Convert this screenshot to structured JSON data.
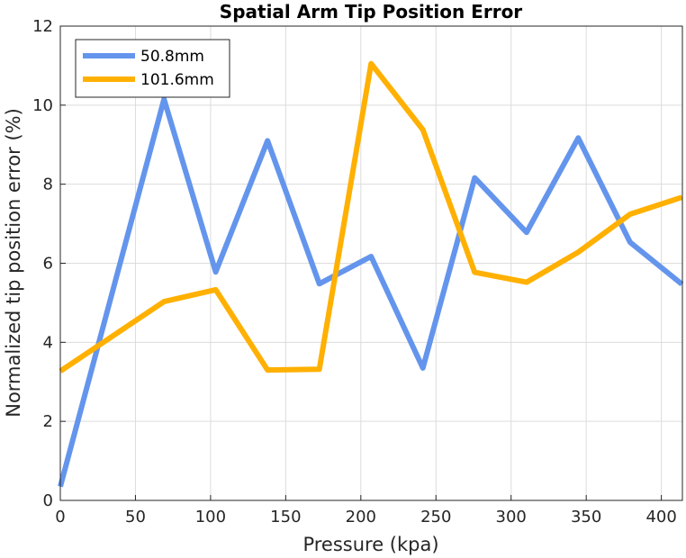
{
  "chart_data": {
    "type": "line",
    "title": "Spatial Arm Tip Position Error",
    "xlabel": "Pressure (kpa)",
    "ylabel": "Normalized tip position error (%)",
    "xlim": [
      0,
      414
    ],
    "ylim": [
      0,
      12
    ],
    "xticks": [
      0,
      50,
      100,
      150,
      200,
      250,
      300,
      350,
      400
    ],
    "yticks": [
      0,
      2,
      4,
      6,
      8,
      10,
      12
    ],
    "grid": true,
    "legend_position": "top-left",
    "series": [
      {
        "name": "50.8mm",
        "color": "#6495ED",
        "x": [
          0,
          69,
          103.4,
          137.9,
          172.4,
          206.8,
          241.3,
          275.8,
          310.3,
          344.7,
          379.2,
          413.7
        ],
        "y": [
          0.35,
          10.15,
          5.78,
          9.1,
          5.48,
          6.17,
          3.35,
          8.16,
          6.78,
          9.17,
          6.53,
          5.47
        ]
      },
      {
        "name": "101.6mm",
        "color": "#FFB000",
        "x": [
          0,
          69,
          103.4,
          137.9,
          172.4,
          206.8,
          241.3,
          275.8,
          310.3,
          344.7,
          379.2,
          413.7
        ],
        "y": [
          3.27,
          5.03,
          5.33,
          3.3,
          3.32,
          11.05,
          9.38,
          5.77,
          5.52,
          6.28,
          7.24,
          7.67
        ]
      }
    ]
  }
}
